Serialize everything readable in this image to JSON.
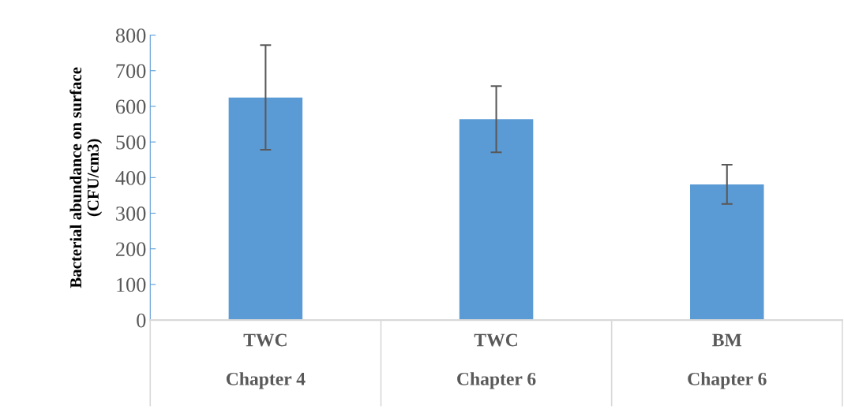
{
  "chart_data": {
    "type": "bar",
    "ylabel": "Bacterial abundance on surface\n(CFU/cm3)",
    "categories": [
      "TWC\n\nChapter 4",
      "TWC\n\nChapter 6",
      "BM\n\nChapter 6"
    ],
    "values": [
      625,
      564,
      381
    ],
    "errors": [
      147,
      93,
      55
    ],
    "color": "#5b9bd5",
    "ylim": [
      0,
      800
    ],
    "yticks": [
      0,
      100,
      200,
      300,
      400,
      500,
      600,
      700,
      800
    ],
    "grid": false
  }
}
